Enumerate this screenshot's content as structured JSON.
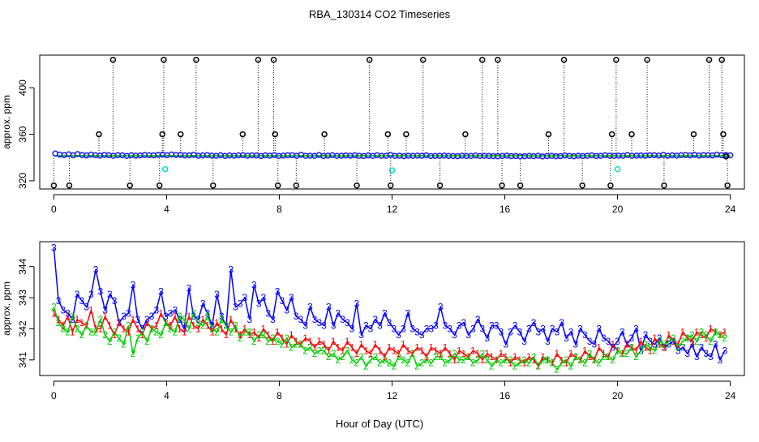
{
  "chart_data": [
    {
      "type": "scatter",
      "title": "RBA_130314  CO2 Timeseries",
      "xlabel": "",
      "ylabel": "approx. ppm",
      "xlim": [
        -0.5,
        24.5
      ],
      "ylim": [
        313,
        428
      ],
      "x_ticks": [
        0,
        4,
        8,
        12,
        16,
        20,
        24
      ],
      "y_ticks": [
        320,
        360,
        400
      ],
      "baseline": 341.5,
      "colors": {
        "black": "#000000",
        "blue": "#1a1aff",
        "green": "#00cc00",
        "cyan": "#00d8d8"
      },
      "series": [
        {
          "name": "black",
          "marker": "circle",
          "x": [
            0.0,
            0.55,
            1.6,
            2.1,
            2.7,
            3.75,
            3.85,
            3.9,
            4.5,
            5.05,
            5.65,
            6.7,
            7.25,
            7.8,
            7.85,
            7.95,
            8.6,
            9.6,
            10.75,
            11.2,
            11.85,
            11.95,
            12.5,
            13.1,
            13.7,
            14.6,
            15.2,
            15.75,
            15.9,
            16.55,
            17.55,
            18.1,
            18.75,
            19.75,
            19.8,
            19.95,
            20.5,
            21.05,
            21.65,
            22.7,
            23.25,
            23.7,
            23.75,
            23.85,
            23.9
          ],
          "y": [
            316,
            316,
            360,
            424,
            316,
            316,
            360,
            424,
            360,
            424,
            316,
            360,
            424,
            424,
            360,
            316,
            316,
            360,
            316,
            424,
            360,
            316,
            360,
            424,
            316,
            360,
            424,
            424,
            316,
            316,
            360,
            424,
            316,
            316,
            360,
            424,
            360,
            424,
            316,
            360,
            424,
            424,
            360,
            341,
            316
          ]
        },
        {
          "name": "blue",
          "marker": "circle",
          "x_start": 0.05,
          "x_end": 24.0,
          "count": 152,
          "y": [
            343.5,
            342.5,
            342.1,
            342.8,
            341.9,
            343.0,
            342.2,
            341.8,
            342.5,
            342.0,
            341.7,
            342.3,
            342.0,
            341.5,
            342.1,
            341.9,
            341.4,
            342.0,
            341.6,
            341.8,
            342.2,
            342.0,
            341.9,
            342.3,
            342.5,
            342.0,
            342.6,
            342.2,
            342.3,
            341.8,
            341.9,
            342.4,
            341.6,
            341.8,
            342.1,
            341.7,
            341.5,
            342.0,
            341.4,
            341.8,
            341.6,
            341.9,
            342.0,
            341.6,
            341.9,
            341.8,
            341.3,
            341.9,
            341.6,
            342.1,
            341.4,
            341.7,
            341.9,
            342.0,
            341.5,
            342.4,
            341.5,
            341.6,
            341.5,
            342.2,
            341.3,
            341.7,
            342.0,
            341.5,
            341.6,
            341.8,
            341.6,
            342.0,
            341.5,
            341.3,
            341.8,
            341.4,
            342.0,
            341.5,
            341.5,
            342.3,
            341.4,
            341.6,
            341.2,
            341.6,
            341.5,
            341.7,
            341.5,
            341.9,
            341.3,
            341.4,
            341.5,
            341.7,
            341.4,
            341.3,
            341.2,
            341.6,
            341.3,
            341.4,
            341.8,
            341.3,
            341.5,
            341.4,
            341.2,
            341.1,
            341.4,
            341.7,
            341.2,
            341.3,
            341.0,
            341.1,
            341.4,
            341.2,
            341.6,
            341.0,
            341.3,
            341.5,
            341.1,
            341.2,
            341.8,
            341.4,
            341.1,
            341.6,
            341.3,
            341.5,
            341.9,
            341.3,
            341.5,
            342.0,
            341.6,
            341.4,
            341.7,
            341.5,
            342.2,
            341.5,
            341.7,
            341.8,
            341.6,
            341.9,
            342.0,
            341.7,
            342.3,
            341.6,
            341.9,
            341.7,
            342.0,
            342.2,
            341.8,
            342.4,
            341.7,
            342.1,
            342.0,
            341.8,
            342.5,
            342.0,
            342.2,
            341.9
          ]
        },
        {
          "name": "cyan",
          "marker": "circle",
          "x": [
            3.95,
            12.0,
            20.0
          ],
          "y": [
            330,
            329,
            330
          ]
        }
      ]
    },
    {
      "type": "line",
      "title": "",
      "xlabel": "Hour of Day (UTC)",
      "ylabel": "approx. ppm",
      "xlim": [
        -0.5,
        24.5
      ],
      "ylim": [
        340.5,
        344.8
      ],
      "x_ticks": [
        0,
        4,
        8,
        12,
        16,
        20,
        24
      ],
      "y_ticks": [
        341,
        342,
        343,
        344
      ],
      "series": [
        {
          "name": "3",
          "color": "#0000ff",
          "label": "3",
          "x_start": 0.0,
          "x_end": 23.8,
          "count": 145,
          "y": [
            344.6,
            342.9,
            342.6,
            342.5,
            342.3,
            343.1,
            342.9,
            342.7,
            343.1,
            343.9,
            343.2,
            342.6,
            343.1,
            342.9,
            342.2,
            342.4,
            342.5,
            343.4,
            342.3,
            342.0,
            342.3,
            342.4,
            342.6,
            343.2,
            342.4,
            342.5,
            342.6,
            342.3,
            342.0,
            343.3,
            342.4,
            342.3,
            342.8,
            342.5,
            342.1,
            343.1,
            342.4,
            342.1,
            343.9,
            342.7,
            342.8,
            343.0,
            342.3,
            343.4,
            342.8,
            343.0,
            342.5,
            342.3,
            343.2,
            342.9,
            342.6,
            343.0,
            342.4,
            342.3,
            342.1,
            342.7,
            342.3,
            342.2,
            342.1,
            342.7,
            342.1,
            342.5,
            342.3,
            342.2,
            342.0,
            342.8,
            341.8,
            342.1,
            342.0,
            342.3,
            342.1,
            342.5,
            342.2,
            342.0,
            341.8,
            342.0,
            342.5,
            342.0,
            341.9,
            341.8,
            342.0,
            342.0,
            342.1,
            342.7,
            342.1,
            342.0,
            341.8,
            342.1,
            342.2,
            341.8,
            342.0,
            342.3,
            342.0,
            341.7,
            342.1,
            342.1,
            341.9,
            341.5,
            341.9,
            342.1,
            341.9,
            341.6,
            342.0,
            342.2,
            341.9,
            342.0,
            341.6,
            342.0,
            341.9,
            342.2,
            341.7,
            341.9,
            341.5,
            342.0,
            341.8,
            341.6,
            341.5,
            342.0,
            341.7,
            341.6,
            341.4,
            341.6,
            341.9,
            341.5,
            341.7,
            342.0,
            341.3,
            341.8,
            341.6,
            341.5,
            341.7,
            341.4,
            341.5,
            341.6,
            341.3,
            341.4,
            341.2,
            341.5,
            341.1,
            341.4,
            341.2,
            341.1,
            341.5,
            341.0,
            341.3
          ]
        },
        {
          "name": "1",
          "color": "#ff0000",
          "label": "1",
          "x_start": 0.0,
          "x_end": 23.8,
          "count": 145,
          "y": [
            342.5,
            342.3,
            342.1,
            342.4,
            341.9,
            342.3,
            342.2,
            342.1,
            342.6,
            342.0,
            342.0,
            342.4,
            342.1,
            341.8,
            342.2,
            342.0,
            341.9,
            342.3,
            342.0,
            341.8,
            342.2,
            342.0,
            342.1,
            342.5,
            342.2,
            342.1,
            342.4,
            342.0,
            341.9,
            342.4,
            342.1,
            342.0,
            342.3,
            342.1,
            341.9,
            342.2,
            342.0,
            341.8,
            342.3,
            342.0,
            341.8,
            342.0,
            341.8,
            341.9,
            341.7,
            342.0,
            341.8,
            341.6,
            341.9,
            341.7,
            341.5,
            341.8,
            341.6,
            341.5,
            341.7,
            341.6,
            341.4,
            341.6,
            341.5,
            341.3,
            341.6,
            341.4,
            341.3,
            341.6,
            341.4,
            341.2,
            341.5,
            341.3,
            341.2,
            341.5,
            341.3,
            341.1,
            341.4,
            341.3,
            341.2,
            341.5,
            341.3,
            341.2,
            341.4,
            341.3,
            341.1,
            341.4,
            341.3,
            341.2,
            341.4,
            341.2,
            341.0,
            341.3,
            341.2,
            341.1,
            341.3,
            341.2,
            341.0,
            341.2,
            341.1,
            341.0,
            341.2,
            341.1,
            340.9,
            341.1,
            341.0,
            340.9,
            341.1,
            341.0,
            340.8,
            341.1,
            341.0,
            340.9,
            341.2,
            341.0,
            340.9,
            341.2,
            341.1,
            341.0,
            341.3,
            341.1,
            341.0,
            341.4,
            341.2,
            341.1,
            341.5,
            341.3,
            341.2,
            341.5,
            341.4,
            341.3,
            341.6,
            341.4,
            341.3,
            341.7,
            341.5,
            341.4,
            341.8,
            341.6,
            341.5,
            341.9,
            341.7,
            341.6,
            341.9,
            341.8,
            341.7,
            342.0,
            341.9,
            341.8,
            341.9
          ]
        },
        {
          "name": "2",
          "color": "#00cc00",
          "label": "2",
          "x_start": 0.0,
          "x_end": 23.8,
          "count": 145,
          "y": [
            342.7,
            342.2,
            342.0,
            341.9,
            342.4,
            342.0,
            341.8,
            342.1,
            341.9,
            341.9,
            342.3,
            341.8,
            341.6,
            341.9,
            341.7,
            341.5,
            342.1,
            341.2,
            341.7,
            341.9,
            341.6,
            342.0,
            341.9,
            341.8,
            342.2,
            342.0,
            341.9,
            342.4,
            342.3,
            342.0,
            342.5,
            342.2,
            342.1,
            342.4,
            342.0,
            341.9,
            342.3,
            342.1,
            341.9,
            342.1,
            341.7,
            341.9,
            341.9,
            341.6,
            341.8,
            341.8,
            341.6,
            341.7,
            341.6,
            341.5,
            341.7,
            341.4,
            341.5,
            341.5,
            341.3,
            341.4,
            341.2,
            341.3,
            341.3,
            341.1,
            341.2,
            341.0,
            341.1,
            341.3,
            341.0,
            340.9,
            341.1,
            340.8,
            341.0,
            341.1,
            340.9,
            341.0,
            340.9,
            340.8,
            341.1,
            341.0,
            340.9,
            341.2,
            340.8,
            340.9,
            341.0,
            340.9,
            341.1,
            341.1,
            340.9,
            341.0,
            341.2,
            341.0,
            341.0,
            341.1,
            340.9,
            341.0,
            341.2,
            341.0,
            340.8,
            341.0,
            340.9,
            341.0,
            341.0,
            340.8,
            340.9,
            341.0,
            340.9,
            341.1,
            340.8,
            341.0,
            341.0,
            340.9,
            340.7,
            340.9,
            341.0,
            340.8,
            341.1,
            341.0,
            340.9,
            341.2,
            341.0,
            340.9,
            341.1,
            341.1,
            341.0,
            341.3,
            341.2,
            341.2,
            341.4,
            341.1,
            341.3,
            341.5,
            341.4,
            341.3,
            341.6,
            341.5,
            341.6,
            341.7,
            341.4,
            341.6,
            341.7,
            341.8,
            341.6,
            341.9,
            341.8,
            341.6,
            341.9,
            341.8,
            341.7
          ]
        }
      ]
    }
  ]
}
